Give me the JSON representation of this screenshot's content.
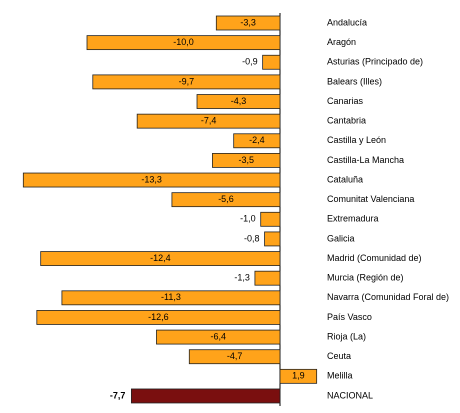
{
  "chart_data": {
    "type": "bar",
    "orientation": "horizontal",
    "categories": [
      "Andalucía",
      "Aragón",
      "Asturias (Principado de)",
      "Balears (Illes)",
      "Canarias",
      "Cantabria",
      "Castilla y León",
      "Castilla-La Mancha",
      "Cataluña",
      "Comunitat Valenciana",
      "Extremadura",
      "Galicia",
      "Madrid (Comunidad de)",
      "Murcia (Región de)",
      "Navarra (Comunidad Foral de)",
      "País Vasco",
      "Rioja (La)",
      "Ceuta",
      "Melilla",
      "NACIONAL"
    ],
    "values": [
      -3.3,
      -10.0,
      -0.9,
      -9.7,
      -4.3,
      -7.4,
      -2.4,
      -3.5,
      -13.3,
      -5.6,
      -1.0,
      -0.8,
      -12.4,
      -1.3,
      -11.3,
      -12.6,
      -6.4,
      -4.7,
      1.9,
      -7.7
    ],
    "value_labels": [
      "-3,3",
      "-10,0",
      "-0,9",
      "-9,7",
      "-4,3",
      "-7,4",
      "-2,4",
      "-3,5",
      "-13,3",
      "-5,6",
      "-1,0",
      "-0,8",
      "-12,4",
      "-1,3",
      "-11,3",
      "-12,6",
      "-6,4",
      "-4,7",
      "1,9",
      "-7,7"
    ],
    "colors": [
      "#ffa31a",
      "#ffa31a",
      "#ffa31a",
      "#ffa31a",
      "#ffa31a",
      "#ffa31a",
      "#ffa31a",
      "#ffa31a",
      "#ffa31a",
      "#ffa31a",
      "#ffa31a",
      "#ffa31a",
      "#ffa31a",
      "#ffa31a",
      "#ffa31a",
      "#ffa31a",
      "#ffa31a",
      "#ffa31a",
      "#ffa31a",
      "#7a0f0f"
    ]
  }
}
